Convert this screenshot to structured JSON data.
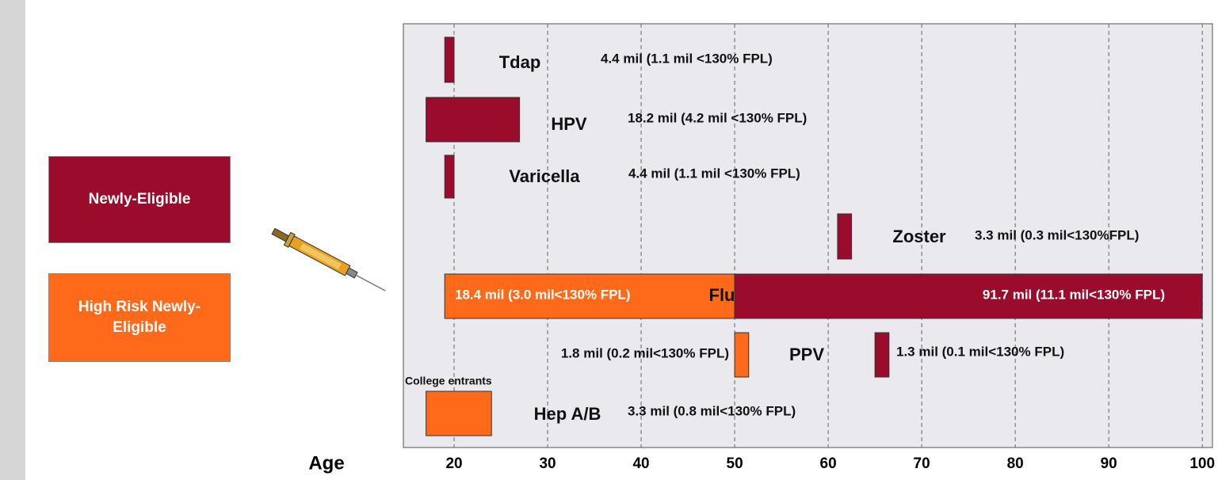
{
  "chart_data": {
    "type": "gantt",
    "x_label": "Age",
    "xlim": [
      15,
      101
    ],
    "xticks": [
      20,
      30,
      40,
      50,
      60,
      70,
      80,
      90,
      100
    ],
    "grid": true,
    "series": [
      {
        "name": "Newly-Eligible",
        "color": "#9b0b2c"
      },
      {
        "name": "High Risk Newly-Eligible",
        "color": "#ff6a1a"
      }
    ],
    "categories": [
      "Tdap",
      "HPV",
      "Varicella",
      "Zoster",
      "Flu",
      "PPV",
      "Hep A/B"
    ],
    "bars": [
      {
        "row": 0,
        "series": 0,
        "start": 19,
        "end": 20,
        "annotation": "4.4 mil (1.1 mil <130% FPL)"
      },
      {
        "row": 1,
        "series": 0,
        "start": 17,
        "end": 27,
        "annotation": "18.2 mil (4.2 mil <130% FPL)"
      },
      {
        "row": 2,
        "series": 0,
        "start": 19,
        "end": 20,
        "annotation": "4.4 mil (1.1 mil <130% FPL)"
      },
      {
        "row": 3,
        "series": 0,
        "start": 61,
        "end": 62.5,
        "annotation": "3.3 mil (0.3 mil<130%FPL)"
      },
      {
        "row": 4,
        "series": 1,
        "start": 19,
        "end": 50,
        "annotation": "18.4 mil (3.0 mil<130% FPL)"
      },
      {
        "row": 4,
        "series": 0,
        "start": 50,
        "end": 100,
        "annotation": "91.7 mil (11.1 mil<130% FPL)"
      },
      {
        "row": 5,
        "series": 1,
        "start": 50,
        "end": 51.5,
        "annotation": "1.8 mil (0.2 mil<130% FPL)"
      },
      {
        "row": 5,
        "series": 0,
        "start": 65,
        "end": 66.5,
        "annotation": "1.3 mil (0.1 mil<130% FPL)"
      },
      {
        "row": 6,
        "series": 1,
        "start": 17,
        "end": 24,
        "annotation": "3.3 mil (0.8 mil<130%  FPL)"
      }
    ],
    "note": "College entrants"
  }
}
